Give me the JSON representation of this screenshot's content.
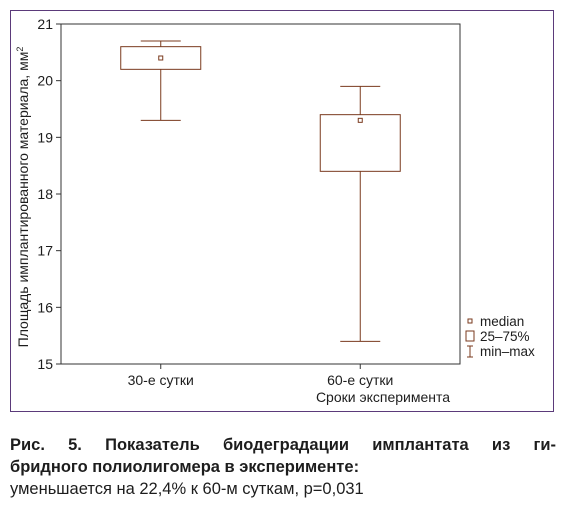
{
  "chart_data": {
    "type": "box",
    "ylabel": "Площадь имплантированного материала, мм",
    "ylabel_superscript": "2",
    "xlabel": "Сроки эксперимента",
    "ylim": [
      15,
      21
    ],
    "yticks": [
      "15",
      "16",
      "17",
      "18",
      "19",
      "20",
      "21"
    ],
    "grid": false,
    "legend_position": "right-bottom",
    "legend": {
      "median": "median",
      "box": "25–75%",
      "whisker": "min–max"
    },
    "categories": [
      "30-е сутки",
      "60-е сутки"
    ],
    "boxes": [
      {
        "category": "30-е сутки",
        "min": 19.3,
        "q1": 20.2,
        "median": 20.4,
        "q3": 20.6,
        "max": 20.7
      },
      {
        "category": "60-е сутки",
        "min": 15.4,
        "q1": 18.4,
        "median": 19.3,
        "q3": 19.4,
        "max": 19.9
      }
    ],
    "colors": {
      "box": "#7a3a1e",
      "frame": "#5b3a7a",
      "text": "#1d1d1d"
    }
  },
  "caption": {
    "bold_line1": "Рис. 5. Показатель биодеградации имплантата из ги-",
    "bold_line2": "бридного полиолигомера в эксперименте:",
    "normal": "уменьшается на 22,4% к 60-м суткам, p=0,031"
  }
}
